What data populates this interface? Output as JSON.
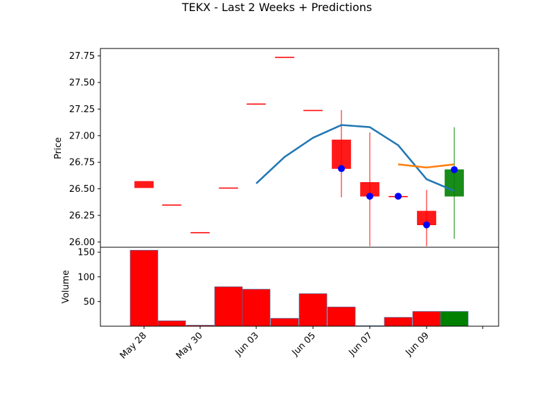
{
  "chart_data": {
    "type": "candlestick",
    "title": "TEKX - Last 2 Weeks + Predictions",
    "price_panel": {
      "ylabel": "Price",
      "ylim": [
        25.95,
        27.82
      ],
      "yticks": [
        26.0,
        26.25,
        26.5,
        26.75,
        27.0,
        27.25,
        27.5,
        27.75
      ],
      "candles": [
        {
          "date": "May 28",
          "open": 26.57,
          "high": 26.57,
          "low": 26.51,
          "close": 26.51,
          "color": "red"
        },
        {
          "date": "May 29",
          "open": 26.35,
          "high": 26.35,
          "low": 26.35,
          "close": 26.35,
          "color": "red"
        },
        {
          "date": "May 30",
          "open": 26.09,
          "high": 26.09,
          "low": 26.09,
          "close": 26.09,
          "color": "red"
        },
        {
          "date": "May 31",
          "open": 26.51,
          "high": 26.51,
          "low": 26.51,
          "close": 26.51,
          "color": "red"
        },
        {
          "date": "Jun 03",
          "open": 27.3,
          "high": 27.3,
          "low": 27.3,
          "close": 27.3,
          "color": "red"
        },
        {
          "date": "Jun 04",
          "open": 27.74,
          "high": 27.74,
          "low": 27.74,
          "close": 27.74,
          "color": "red"
        },
        {
          "date": "Jun 05",
          "open": 27.24,
          "high": 27.24,
          "low": 27.24,
          "close": 27.24,
          "color": "red"
        },
        {
          "date": "Jun 06",
          "open": 26.96,
          "high": 27.24,
          "low": 26.42,
          "close": 26.69,
          "color": "red"
        },
        {
          "date": "Jun 07",
          "open": 26.56,
          "high": 27.03,
          "low": 25.96,
          "close": 26.43,
          "color": "red"
        },
        {
          "date": "Jun 08",
          "open": 26.43,
          "high": 26.43,
          "low": 26.43,
          "close": 26.43,
          "color": "red"
        },
        {
          "date": "Jun 09",
          "open": 26.29,
          "high": 26.49,
          "low": 25.96,
          "close": 26.16,
          "color": "red"
        },
        {
          "date": "Jun 10",
          "open": 26.43,
          "high": 27.08,
          "low": 26.03,
          "close": 26.68,
          "color": "green"
        }
      ],
      "moving_average": {
        "color": "#1f77b4",
        "points": [
          {
            "date": "Jun 03",
            "value": 26.55
          },
          {
            "date": "Jun 04",
            "value": 26.8
          },
          {
            "date": "Jun 05",
            "value": 26.98
          },
          {
            "date": "Jun 06",
            "value": 27.1
          },
          {
            "date": "Jun 07",
            "value": 27.08
          },
          {
            "date": "Jun 08",
            "value": 26.91
          },
          {
            "date": "Jun 09",
            "value": 26.59
          },
          {
            "date": "Jun 10",
            "value": 26.48
          }
        ]
      },
      "prediction_line": {
        "color": "#ff7f0e",
        "points": [
          {
            "date": "Jun 08",
            "value": 26.73
          },
          {
            "date": "Jun 09",
            "value": 26.7
          },
          {
            "date": "Jun 10",
            "value": 26.73
          }
        ]
      },
      "markers": {
        "color": "#0000ff",
        "points": [
          {
            "date": "Jun 06",
            "value": 26.69
          },
          {
            "date": "Jun 07",
            "value": 26.43
          },
          {
            "date": "Jun 08",
            "value": 26.43
          },
          {
            "date": "Jun 09",
            "value": 26.16
          },
          {
            "date": "Jun 10",
            "value": 26.68
          }
        ]
      }
    },
    "volume_panel": {
      "ylabel": "Volume",
      "ylim": [
        0,
        160
      ],
      "yticks": [
        50,
        100,
        150
      ],
      "bars": [
        {
          "date": "May 28",
          "value": 154,
          "color": "red"
        },
        {
          "date": "May 29",
          "value": 11,
          "color": "red"
        },
        {
          "date": "May 30",
          "value": 2,
          "color": "red"
        },
        {
          "date": "May 31",
          "value": 80,
          "color": "red"
        },
        {
          "date": "Jun 03",
          "value": 75,
          "color": "red"
        },
        {
          "date": "Jun 04",
          "value": 16,
          "color": "red"
        },
        {
          "date": "Jun 05",
          "value": 66,
          "color": "red"
        },
        {
          "date": "Jun 06",
          "value": 39,
          "color": "red"
        },
        {
          "date": "Jun 07",
          "value": 1,
          "color": "red"
        },
        {
          "date": "Jun 08",
          "value": 18,
          "color": "red"
        },
        {
          "date": "Jun 09",
          "value": 30,
          "color": "red"
        },
        {
          "date": "Jun 10",
          "value": 30,
          "color": "green"
        }
      ]
    },
    "x_axis": {
      "tick_labels": [
        "May 28",
        "May 30",
        "Jun 03",
        "Jun 05",
        "Jun 07",
        "Jun 09",
        ""
      ],
      "tick_positions": [
        "May 28",
        "May 30",
        "Jun 03",
        "Jun 05",
        "Jun 07",
        "Jun 09",
        "Jun 11"
      ]
    }
  }
}
